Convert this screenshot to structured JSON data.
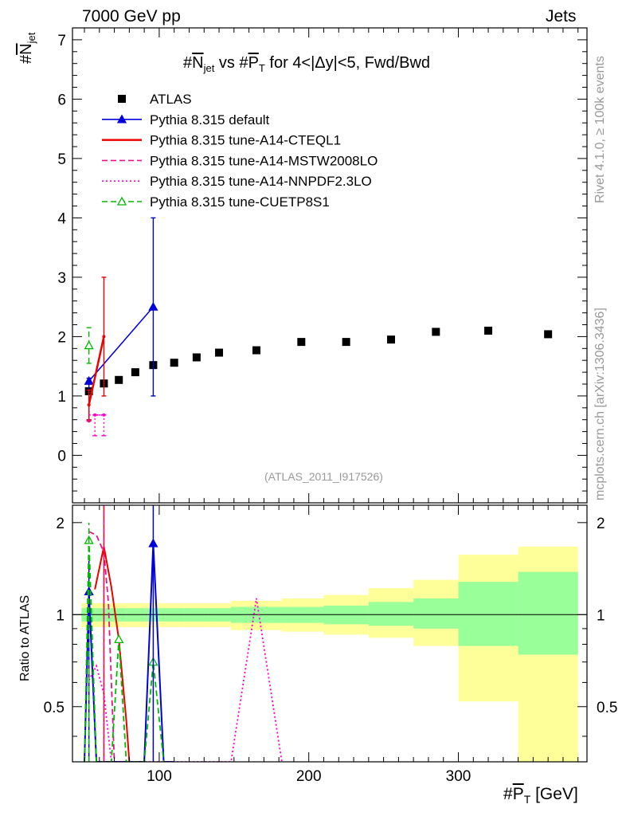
{
  "header": {
    "left_label": "7000 GeV pp",
    "right_label": "Jets"
  },
  "side_labels": {
    "rivet": "Rivet 4.1.0, ≥ 100k events",
    "mcplots": "mcplots.cern.ch [arXiv:1306.3436]"
  },
  "chart_data": {
    "type": "scatter",
    "title": "#N̄jet vs #P̄T for 4<|Δy|<5, Fwd/Bwd",
    "title_parts": {
      "a": "#",
      "b": "N",
      "c": "jet",
      "d": " vs #",
      "e": "P",
      "f": "T",
      "g": " for 4<|Δy|<5, Fwd/Bwd"
    },
    "ylabel_parts": {
      "a": "#",
      "b": "N",
      "c": "jet"
    },
    "xlabel_parts": {
      "a": "#",
      "b": "P",
      "c": "T",
      "d": " [GeV]"
    },
    "ratio_ylabel": "Ratio to ATLAS",
    "watermark": "(ATLAS_2011_I917526)",
    "xlim": [
      42,
      386
    ],
    "ylim_main": [
      -0.8,
      7.2
    ],
    "ylim_ratio": [
      0.33,
      2.28
    ],
    "main_yticks": [
      "0",
      "1",
      "2",
      "3",
      "4",
      "5",
      "6",
      "7"
    ],
    "ratio_yticks": [
      "0.5",
      "1",
      "2"
    ],
    "xticks": [
      "100",
      "200",
      "300"
    ],
    "data": {
      "name": "ATLAS",
      "x": [
        53,
        63,
        73,
        84,
        96,
        110,
        125,
        140,
        165,
        195,
        225,
        255,
        285,
        320,
        360
      ],
      "y": [
        1.08,
        1.21,
        1.27,
        1.4,
        1.52,
        1.56,
        1.65,
        1.73,
        1.77,
        1.91,
        1.91,
        1.95,
        2.08,
        2.1,
        2.04
      ],
      "bins": [
        [
          48,
          57
        ],
        [
          57,
          68
        ],
        [
          68,
          78
        ],
        [
          78,
          90
        ],
        [
          90,
          103
        ],
        [
          103,
          117
        ],
        [
          117,
          133
        ],
        [
          133,
          148
        ],
        [
          148,
          182
        ],
        [
          182,
          210
        ],
        [
          210,
          240
        ],
        [
          240,
          270
        ],
        [
          270,
          300
        ],
        [
          300,
          340
        ],
        [
          340,
          380
        ]
      ],
      "ratio_band_inner": [
        [
          0.95,
          1.05
        ],
        [
          0.95,
          1.05
        ],
        [
          0.95,
          1.05
        ],
        [
          0.95,
          1.05
        ],
        [
          0.95,
          1.05
        ],
        [
          0.95,
          1.05
        ],
        [
          0.95,
          1.05
        ],
        [
          0.95,
          1.05
        ],
        [
          0.94,
          1.06
        ],
        [
          0.94,
          1.06
        ],
        [
          0.93,
          1.07
        ],
        [
          0.92,
          1.1
        ],
        [
          0.9,
          1.13
        ],
        [
          0.79,
          1.28
        ],
        [
          0.74,
          1.38
        ]
      ],
      "ratio_band_outer": [
        [
          0.91,
          1.09
        ],
        [
          0.91,
          1.09
        ],
        [
          0.91,
          1.09
        ],
        [
          0.91,
          1.09
        ],
        [
          0.91,
          1.09
        ],
        [
          0.91,
          1.09
        ],
        [
          0.91,
          1.09
        ],
        [
          0.91,
          1.09
        ],
        [
          0.89,
          1.11
        ],
        [
          0.88,
          1.13
        ],
        [
          0.86,
          1.16
        ],
        [
          0.84,
          1.22
        ],
        [
          0.79,
          1.3
        ],
        [
          0.52,
          1.57
        ],
        [
          0.33,
          1.67
        ]
      ]
    },
    "series": [
      {
        "name": "Pythia 8.315 default",
        "color": "#0000dd",
        "style": "solid",
        "marker": "triangle",
        "x": [
          53,
          96
        ],
        "y": [
          1.25,
          2.5
        ],
        "yerr_lo": [
          0.6,
          1.0
        ],
        "yerr_hi": [
          1.3,
          4.0
        ],
        "ratio_x": [
          50,
          53,
          58,
          68,
          73,
          78,
          90,
          96,
          103,
          110
        ],
        "ratio_y": [
          0.33,
          1.19,
          0.33,
          0.33,
          0.33,
          0.33,
          0.33,
          1.71,
          0.33,
          0.33
        ],
        "ratio_markers": [
          [
            53,
            1.19
          ],
          [
            96,
            1.71
          ]
        ]
      },
      {
        "name": "Pythia 8.315 tune-A14-CTEQL1",
        "color": "#ee0000",
        "style": "solid",
        "marker": "none",
        "x": [
          53,
          63
        ],
        "y": [
          0.85,
          2.0
        ],
        "yerr_lo": [
          0.6,
          1.0
        ],
        "yerr_hi": [
          1.1,
          3.0
        ],
        "ratio_x": [
          57,
          63,
          68,
          73,
          78,
          80
        ],
        "ratio_y": [
          1.21,
          1.67,
          1.23,
          0.83,
          0.45,
          0.33
        ],
        "ratio_markers": []
      },
      {
        "name": "Pythia 8.315 tune-A14-MSTW2008LO",
        "color": "#ee1188",
        "style": "dashed",
        "marker": "none",
        "x": [
          53
        ],
        "y": [
          0.58
        ],
        "yerr_lo": [
          0.58
        ],
        "yerr_hi": [
          0.58
        ],
        "ratio_x": [
          53,
          58,
          63,
          66,
          70
        ],
        "ratio_y": [
          1.87,
          1.82,
          1.6,
          1.1,
          0.33
        ],
        "ratio_markers": []
      },
      {
        "name": "Pythia 8.315 tune-A14-NNPDF2.3LO",
        "color": "#ff00cc",
        "style": "dotted",
        "marker": "none",
        "x": [
          57,
          63
        ],
        "y": [
          0.68,
          0.68
        ],
        "yerr_lo": [
          0.33,
          0.33
        ],
        "yerr_hi": [
          0.68,
          0.68
        ],
        "ratio_x": [
          53,
          58,
          63,
          68,
          148,
          165,
          182
        ],
        "ratio_y": [
          0.61,
          0.68,
          0.55,
          0.33,
          0.33,
          1.13,
          0.33
        ],
        "ratio_markers": []
      },
      {
        "name": "Pythia 8.315 tune-CUETP8S1",
        "color": "#00bb00",
        "style": "dashed",
        "marker": "open-triangle",
        "x": [
          53
        ],
        "y": [
          1.85
        ],
        "yerr_lo": [
          1.55
        ],
        "yerr_hi": [
          2.15
        ],
        "ratio_x": [
          50,
          53,
          58,
          68,
          73,
          78,
          90,
          96,
          103
        ],
        "ratio_y": [
          0.33,
          1.75,
          0.33,
          0.33,
          0.83,
          0.33,
          0.33,
          0.7,
          0.33
        ],
        "ratio_markers": [
          [
            53,
            1.75
          ],
          [
            73,
            0.83
          ],
          [
            96,
            0.7
          ]
        ]
      }
    ]
  }
}
